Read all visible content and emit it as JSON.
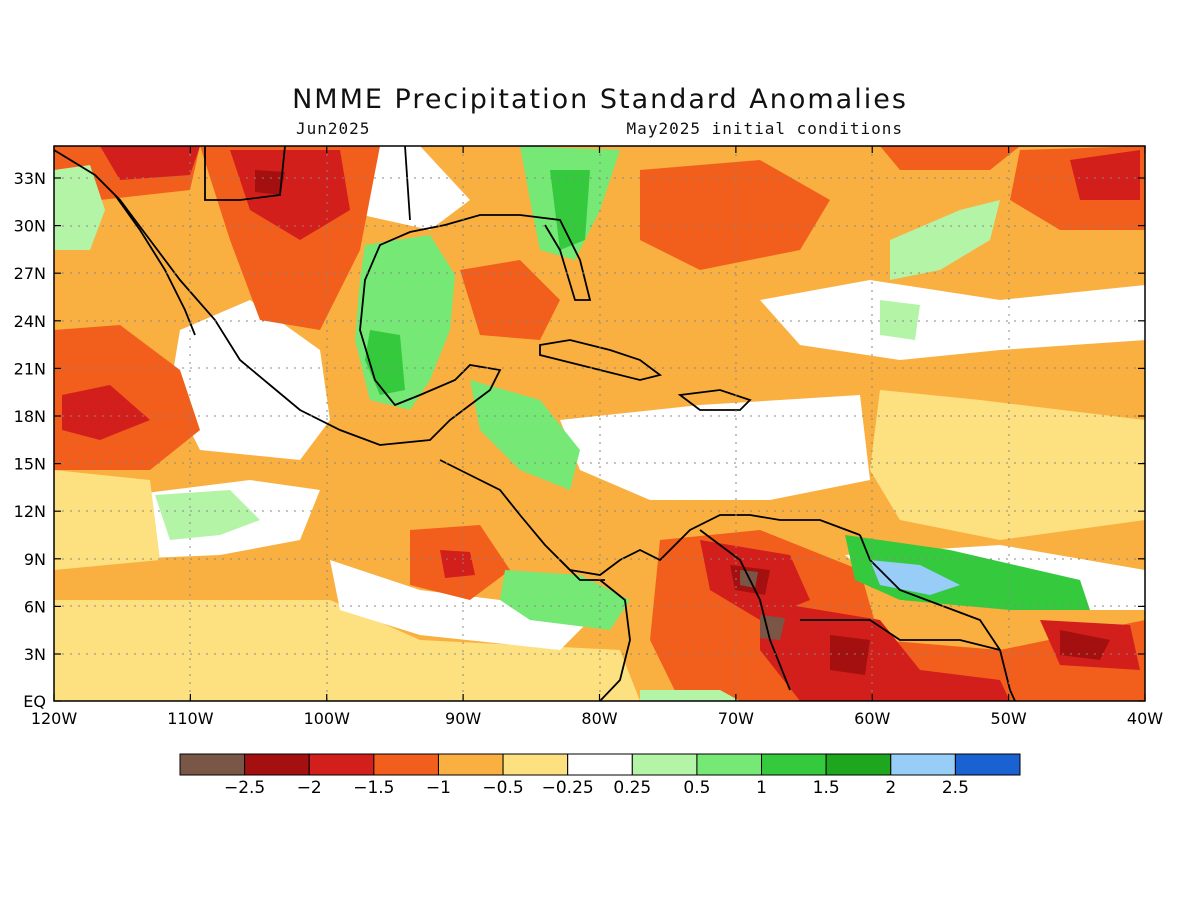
{
  "title": "NMME Precipitation Standard Anomalies",
  "subtitle_left": "Jun2025",
  "subtitle_right": "May2025 initial conditions",
  "lat_labels": [
    "33N",
    "30N",
    "27N",
    "24N",
    "21N",
    "18N",
    "15N",
    "12N",
    "9N",
    "6N",
    "3N",
    "EQ"
  ],
  "lon_labels": [
    "120W",
    "110W",
    "100W",
    "90W",
    "80W",
    "70W",
    "60W",
    "50W",
    "40W"
  ],
  "colorbar": {
    "colors": [
      "#7a5647",
      "#a3100f",
      "#d21f1b",
      "#f25e1c",
      "#f9b040",
      "#fde181",
      "#ffffff",
      "#b4f4a7",
      "#76e876",
      "#35c93d",
      "#1ea61f",
      "#97cdf6",
      "#1a62d1"
    ],
    "labels": [
      "-2.5",
      "-2",
      "-1.5",
      "-1",
      "-0.5",
      "-0.25",
      "0.25",
      "0.5",
      "1",
      "1.5",
      "2",
      "2.5"
    ]
  }
}
